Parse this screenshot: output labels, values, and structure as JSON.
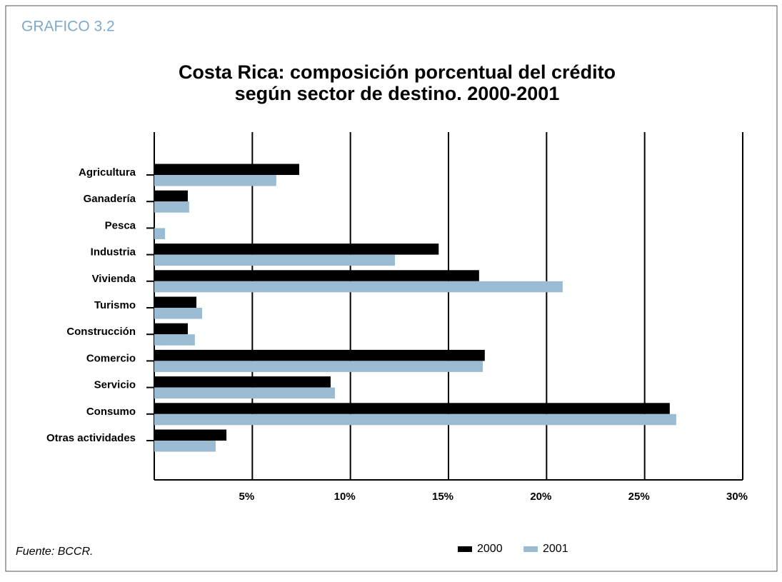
{
  "header": "GRAFICO 3.2",
  "chart_data": {
    "type": "hbar",
    "title": [
      "Costa Rica: composición porcentual del crédito",
      "según sector de destino. 2000-2001"
    ],
    "categories": [
      "Agricultura",
      "Ganadería",
      "Pesca",
      "Industria",
      "Vivienda",
      "Turismo",
      "Construcción",
      "Comercio",
      "Servicio",
      "Consumo",
      "Otras actividades"
    ],
    "series": [
      {
        "name": "2000",
        "color": "#000000",
        "values": [
          7.39,
          1.71,
          0,
          14.5,
          16.56,
          2.15,
          1.71,
          16.85,
          8.99,
          26.28,
          3.68
        ]
      },
      {
        "name": "2001",
        "color": "#9bbbd2",
        "values": [
          6.22,
          1.78,
          0.55,
          12.27,
          20.82,
          2.44,
          2.07,
          16.75,
          9.21,
          26.61,
          3.13
        ]
      }
    ],
    "xlim": [
      0,
      30
    ],
    "xticks": [
      {
        "value": 5,
        "label": "5%"
      },
      {
        "value": 10,
        "label": "10%"
      },
      {
        "value": 15,
        "label": "15%"
      },
      {
        "value": 20,
        "label": "20%"
      },
      {
        "value": 25,
        "label": "25%"
      },
      {
        "value": 30,
        "label": "30%"
      }
    ],
    "grid": true,
    "legend": "bottom"
  },
  "source": "Fuente: BCCR."
}
